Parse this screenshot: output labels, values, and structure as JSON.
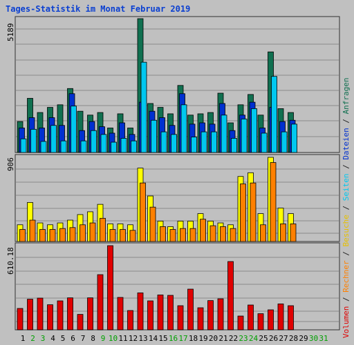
{
  "title": "Tages-Statistik im Monat Februar 2019",
  "panel_max_labels": {
    "top": "5189",
    "middle": "906",
    "bottom": "610.18"
  },
  "legend": {
    "separator": " / ",
    "entries": [
      {
        "label": "Volumen",
        "color": "#e00000"
      },
      {
        "label": "Rechner",
        "color": "#ff8000"
      },
      {
        "label": "Besuche",
        "color": "#e6c000"
      },
      {
        "label": "Seiten",
        "color": "#00c8f0"
      },
      {
        "label": "Dateien",
        "color": "#0030d0"
      },
      {
        "label": "Anfragen",
        "color": "#107050"
      }
    ]
  },
  "colors": {
    "background": "#c0c0c0",
    "grid": "#8a8a8a",
    "day_weekday": "#000000",
    "day_weekend": "#00a000",
    "anfragen": "#107050",
    "dateien": "#0030d0",
    "seiten": "#00c8f0",
    "besuche": "#ffff00",
    "rechner": "#ff8000",
    "volumen": "#e00000"
  },
  "chart_data": {
    "type": "bar",
    "x": [
      "1",
      "2",
      "3",
      "4",
      "5",
      "6",
      "7",
      "8",
      "9",
      "10",
      "11",
      "12",
      "13",
      "14",
      "15",
      "16",
      "17",
      "18",
      "19",
      "20",
      "21",
      "22",
      "23",
      "24",
      "25",
      "26",
      "27",
      "28",
      "29",
      "30",
      "31"
    ],
    "weekend_days": [
      "2",
      "3",
      "9",
      "10",
      "16",
      "17",
      "23",
      "24",
      "30",
      "31"
    ],
    "panels": [
      {
        "name": "top",
        "ylim": [
          0,
          5189
        ],
        "series": [
          {
            "name": "Anfragen",
            "values": [
              1200,
              2100,
              1550,
              1750,
              1850,
              2480,
              1600,
              1450,
              1550,
              950,
              1500,
              950,
              5189,
              1900,
              1750,
              1500,
              2600,
              1450,
              1500,
              1550,
              2300,
              1150,
              1850,
              2250,
              1450,
              3900,
              1700,
              1550,
              0,
              0,
              0
            ]
          },
          {
            "name": "Dateien",
            "values": [
              950,
              1350,
              950,
              1350,
              1050,
              2280,
              850,
              1200,
              1000,
              750,
              1150,
              700,
              1950,
              1600,
              1350,
              1050,
              2280,
              1100,
              1150,
              1100,
              1900,
              850,
              1450,
              1950,
              950,
              1750,
              1200,
              1250,
              0,
              0,
              0
            ]
          },
          {
            "name": "Seiten",
            "values": [
              530,
              900,
              430,
              1050,
              450,
              1800,
              450,
              850,
              700,
              400,
              550,
              450,
              3500,
              1250,
              800,
              700,
              1850,
              600,
              800,
              800,
              1450,
              550,
              1300,
              1700,
              750,
              2950,
              800,
              1100,
              0,
              0,
              0
            ]
          }
        ]
      },
      {
        "name": "middle",
        "ylim": [
          0,
          906
        ],
        "series": [
          {
            "name": "Besuche",
            "values": [
              180,
              420,
              200,
              180,
              200,
              230,
              290,
              320,
              400,
              190,
              190,
              180,
              790,
              490,
              220,
              160,
              220,
              220,
              300,
              220,
              200,
              180,
              700,
              740,
              300,
              906,
              360,
              300,
              0,
              0,
              0
            ]
          },
          {
            "name": "Rechner",
            "values": [
              130,
              230,
              130,
              130,
              140,
              150,
              180,
              200,
              250,
              130,
              130,
              120,
              630,
              370,
              160,
              130,
              140,
              140,
              240,
              170,
              160,
              140,
              620,
              630,
              180,
              850,
              190,
              190,
              0,
              0,
              0
            ]
          }
        ]
      },
      {
        "name": "bottom",
        "ylim": [
          0,
          610.18
        ],
        "series": [
          {
            "name": "Volumen",
            "values": [
              155,
              222,
              230,
              182,
              210,
              232,
              112,
              232,
              400,
              610.18,
              235,
              140,
              268,
              210,
              253,
              250,
              175,
              295,
              160,
              212,
              225,
              495,
              100,
              180,
              117,
              145,
              188,
              175,
              0,
              0,
              0
            ]
          }
        ]
      }
    ],
    "grid": true,
    "legend_position": "right-vertical"
  }
}
